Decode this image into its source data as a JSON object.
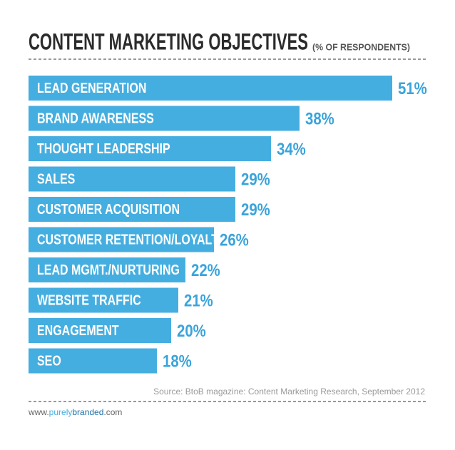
{
  "chart_data": {
    "type": "bar",
    "orientation": "horizontal",
    "title": "CONTENT MARKETING OBJECTIVES",
    "subtitle": "(% OF RESPONDENTS)",
    "categories": [
      "LEAD GENERATION",
      "BRAND AWARENESS",
      "THOUGHT LEADERSHIP",
      "SALES",
      "CUSTOMER ACQUISITION",
      "CUSTOMER RETENTION/LOYALTY",
      "LEAD MGMT./NURTURING",
      "WEBSITE TRAFFIC",
      "ENGAGEMENT",
      "SEO"
    ],
    "values": [
      51,
      38,
      34,
      29,
      29,
      26,
      22,
      21,
      20,
      18
    ],
    "value_labels": [
      "51%",
      "38%",
      "34%",
      "29%",
      "29%",
      "26%",
      "22%",
      "21%",
      "20%",
      "18%"
    ],
    "color": "#45aee0",
    "source": "Source: BtoB magazine: Content Marketing Research, September 2012",
    "footer": [
      "www.",
      "purely",
      "branded",
      ".com"
    ]
  }
}
